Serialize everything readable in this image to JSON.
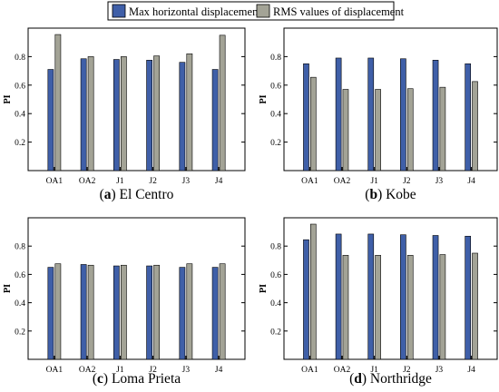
{
  "legend": {
    "items": [
      {
        "label": "Max horizontal displacement",
        "color": "#3f5fa8"
      },
      {
        "label": "RMS values of displacement",
        "color": "#a3a396"
      }
    ]
  },
  "chart_data": [
    {
      "type": "bar",
      "panel_letter": "a",
      "panel_title": "El Centro",
      "categories": [
        "OA1",
        "OA2",
        "J1",
        "J2",
        "J3",
        "J4"
      ],
      "series": [
        {
          "name": "Max horizontal displacement",
          "values": [
            0.71,
            0.785,
            0.78,
            0.775,
            0.76,
            0.71
          ]
        },
        {
          "name": "RMS values of displacement",
          "values": [
            0.955,
            0.8,
            0.8,
            0.805,
            0.82,
            0.95
          ]
        }
      ],
      "ylabel": "PI",
      "ylim": [
        0,
        1.0
      ],
      "yticks": [
        0.2,
        0.4,
        0.6,
        0.8
      ]
    },
    {
      "type": "bar",
      "panel_letter": "b",
      "panel_title": "Kobe",
      "categories": [
        "OA1",
        "OA2",
        "J1",
        "J2",
        "J3",
        "J4"
      ],
      "series": [
        {
          "name": "Max horizontal displacement",
          "values": [
            0.75,
            0.79,
            0.79,
            0.785,
            0.775,
            0.75
          ]
        },
        {
          "name": "RMS values of displacement",
          "values": [
            0.655,
            0.57,
            0.57,
            0.575,
            0.585,
            0.625
          ]
        }
      ],
      "ylabel": "PI",
      "ylim": [
        0,
        1.0
      ],
      "yticks": [
        0.2,
        0.4,
        0.6,
        0.8
      ]
    },
    {
      "type": "bar",
      "panel_letter": "c",
      "panel_title": "Loma Prieta",
      "categories": [
        "OA1",
        "OA2",
        "J1",
        "J2",
        "J3",
        "J4"
      ],
      "series": [
        {
          "name": "Max horizontal displacement",
          "values": [
            0.65,
            0.67,
            0.66,
            0.66,
            0.65,
            0.65
          ]
        },
        {
          "name": "RMS values of displacement",
          "values": [
            0.675,
            0.665,
            0.665,
            0.665,
            0.675,
            0.675
          ]
        }
      ],
      "ylabel": "PI",
      "ylim": [
        0,
        1.0
      ],
      "yticks": [
        0.2,
        0.4,
        0.6,
        0.8
      ]
    },
    {
      "type": "bar",
      "panel_letter": "d",
      "panel_title": "Northridge",
      "categories": [
        "OA1",
        "OA2",
        "J1",
        "J2",
        "J3",
        "J4"
      ],
      "series": [
        {
          "name": "Max horizontal displacement",
          "values": [
            0.845,
            0.885,
            0.885,
            0.88,
            0.875,
            0.87
          ]
        },
        {
          "name": "RMS values of displacement",
          "values": [
            0.955,
            0.735,
            0.735,
            0.735,
            0.74,
            0.75
          ]
        }
      ],
      "ylabel": "PI",
      "ylim": [
        0,
        1.0
      ],
      "yticks": [
        0.2,
        0.4,
        0.6,
        0.8
      ]
    }
  ]
}
